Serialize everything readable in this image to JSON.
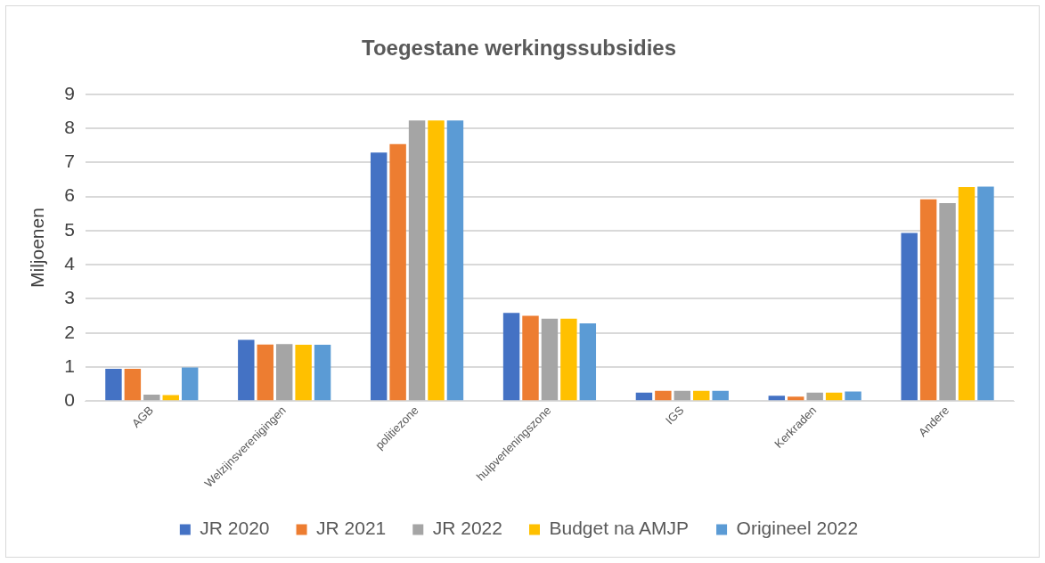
{
  "chart_data": {
    "type": "bar",
    "title": "Toegestane werkingssubsidies",
    "ylabel": "Miljoenen",
    "categories": [
      "AGB",
      "Welzijnsverenigingen",
      "politiezone",
      "hulpverleningszone",
      "IGS",
      "Kerkraden",
      "Andere"
    ],
    "series": [
      {
        "name": "JR 2020",
        "color": "#4472c4",
        "values": [
          0.95,
          1.8,
          7.29,
          2.59,
          0.25,
          0.16,
          4.93
        ]
      },
      {
        "name": "JR 2021",
        "color": "#ed7d31",
        "values": [
          0.95,
          1.66,
          7.54,
          2.5,
          0.3,
          0.13,
          5.92
        ]
      },
      {
        "name": "JR 2022",
        "color": "#a5a5a5",
        "values": [
          0.19,
          1.67,
          8.23,
          2.42,
          0.3,
          0.25,
          5.81
        ]
      },
      {
        "name": "Budget na AMJP",
        "color": "#ffc000",
        "values": [
          0.18,
          1.65,
          8.23,
          2.42,
          0.3,
          0.25,
          6.28
        ]
      },
      {
        "name": "Origineel 2022",
        "color": "#5b9bd5",
        "values": [
          0.99,
          1.65,
          8.23,
          2.28,
          0.3,
          0.28,
          6.29
        ]
      }
    ],
    "ylim": [
      0,
      9
    ],
    "yticks": [
      0,
      1,
      2,
      3,
      4,
      5,
      6,
      7,
      8,
      9
    ],
    "grid": "y",
    "legend": "bottom"
  }
}
